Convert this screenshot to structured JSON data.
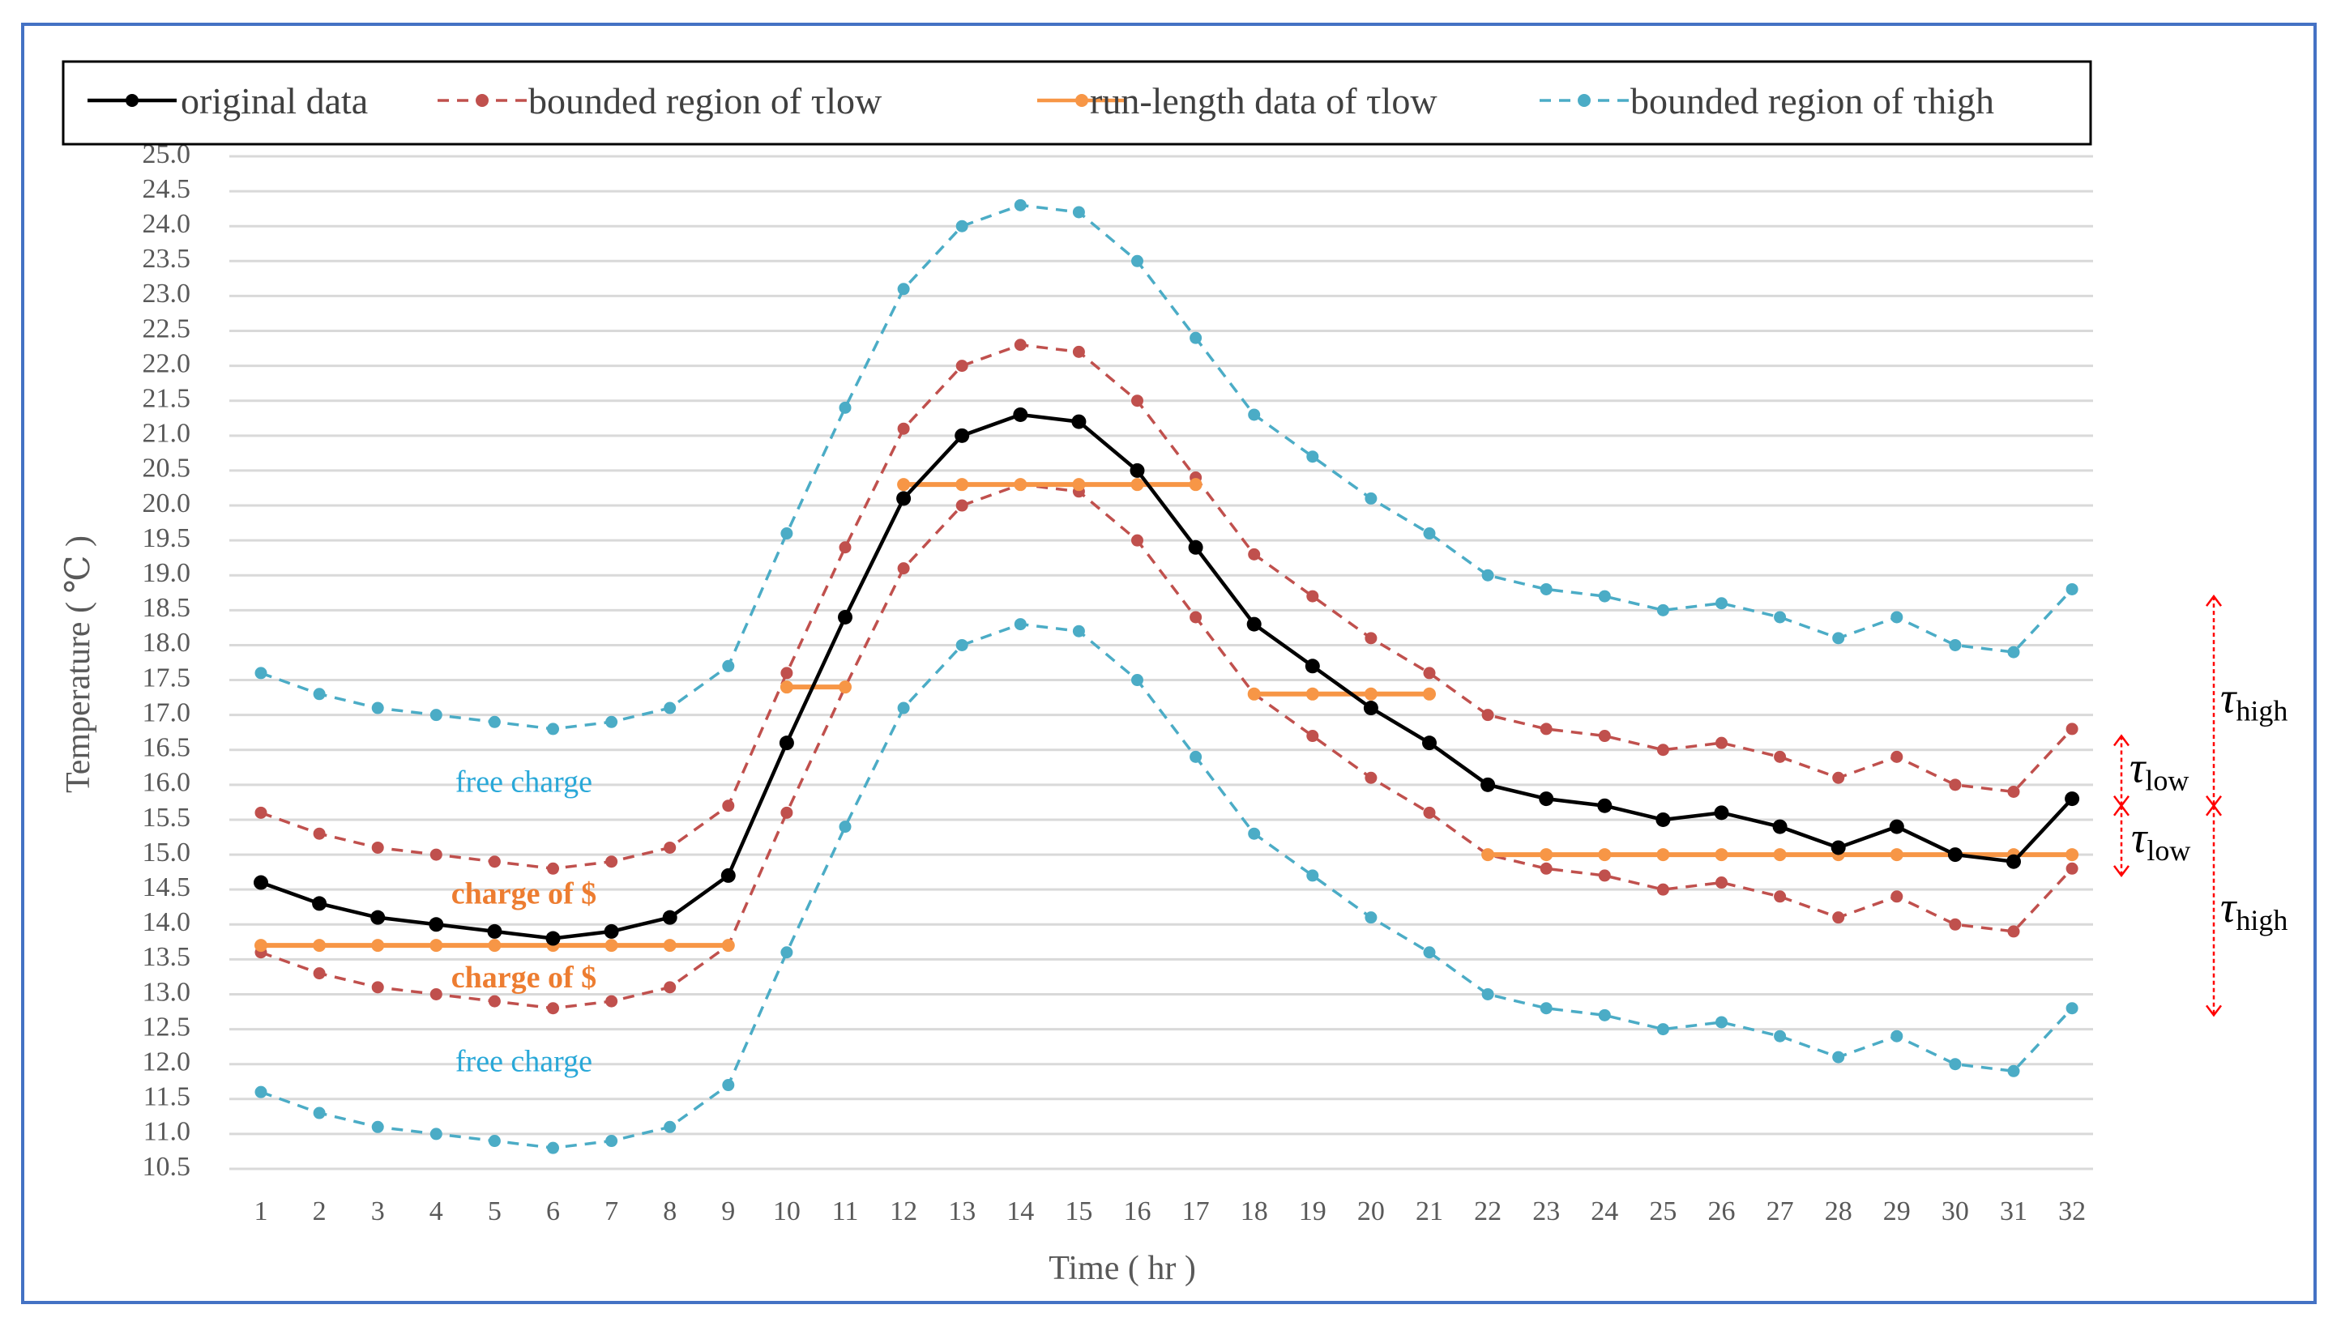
{
  "chart_data": {
    "type": "line",
    "title": "",
    "xlabel": "Time ( hr )",
    "ylabel": "Temperature ( ℃ )",
    "ylim": [
      10.5,
      25.0
    ],
    "y_step": 0.5,
    "grid": true,
    "legend_position": "top",
    "categories": [
      "1",
      "2",
      "3",
      "4",
      "5",
      "6",
      "7",
      "8",
      "9",
      "10",
      "11",
      "12",
      "13",
      "14",
      "15",
      "16",
      "17",
      "18",
      "19",
      "20",
      "21",
      "22",
      "23",
      "24",
      "25",
      "26",
      "27",
      "28",
      "29",
      "30",
      "31",
      "32"
    ],
    "series": [
      {
        "name": "original data",
        "color": "#000000",
        "dash": "solid",
        "values": [
          14.6,
          14.3,
          14.1,
          14.0,
          13.9,
          13.8,
          13.9,
          14.1,
          14.7,
          16.6,
          18.4,
          20.1,
          21.0,
          21.3,
          21.2,
          20.5,
          19.4,
          18.3,
          17.7,
          17.1,
          16.6,
          16.0,
          15.8,
          15.7,
          15.5,
          15.6,
          15.4,
          15.1,
          15.4,
          15.0,
          14.9,
          15.8
        ]
      },
      {
        "name": "bounded  region of  τlow",
        "color": "#c0504d",
        "dash": "dashed",
        "band": "upper",
        "values": [
          15.6,
          15.3,
          15.1,
          15.0,
          14.9,
          14.8,
          14.9,
          15.1,
          15.7,
          17.6,
          19.4,
          21.1,
          22.0,
          22.3,
          22.2,
          21.5,
          20.4,
          19.3,
          18.7,
          18.1,
          17.6,
          17.0,
          16.8,
          16.7,
          16.5,
          16.6,
          16.4,
          16.1,
          16.4,
          16.0,
          15.9,
          16.8
        ]
      },
      {
        "name": "bounded  region of  τlow",
        "color": "#c0504d",
        "dash": "dashed",
        "band": "lower",
        "values": [
          13.6,
          13.3,
          13.1,
          13.0,
          12.9,
          12.8,
          12.9,
          13.1,
          13.7,
          15.6,
          17.4,
          19.1,
          20.0,
          20.3,
          20.2,
          19.5,
          18.4,
          17.3,
          16.7,
          16.1,
          15.6,
          15.0,
          14.8,
          14.7,
          14.5,
          14.6,
          14.4,
          14.1,
          14.4,
          14.0,
          13.9,
          14.8
        ]
      },
      {
        "name": "bounded  region of τhigh",
        "color": "#4bacc6",
        "dash": "dashed",
        "band": "upper",
        "values": [
          17.6,
          17.3,
          17.1,
          17.0,
          16.9,
          16.8,
          16.9,
          17.1,
          17.7,
          19.6,
          21.4,
          23.1,
          24.0,
          24.3,
          24.2,
          23.5,
          22.4,
          21.3,
          20.7,
          20.1,
          19.6,
          19.0,
          18.8,
          18.7,
          18.5,
          18.6,
          18.4,
          18.1,
          18.4,
          18.0,
          17.9,
          18.8
        ]
      },
      {
        "name": "bounded  region of τhigh",
        "color": "#4bacc6",
        "dash": "dashed",
        "band": "lower",
        "values": [
          11.6,
          11.3,
          11.1,
          11.0,
          10.9,
          10.8,
          10.9,
          11.1,
          11.7,
          13.6,
          15.4,
          17.1,
          18.0,
          18.3,
          18.2,
          17.5,
          16.4,
          15.3,
          14.7,
          14.1,
          13.6,
          13.0,
          12.8,
          12.7,
          12.5,
          12.6,
          12.4,
          12.1,
          12.4,
          12.0,
          11.9,
          12.8
        ]
      },
      {
        "name": "run-length data of τlow",
        "color": "#f79646",
        "dash": "solid",
        "segments": [
          {
            "x": [
              1,
              2,
              3,
              4,
              5,
              6,
              7,
              8,
              9
            ],
            "value": 13.7
          },
          {
            "x": [
              10,
              11
            ],
            "value": 17.4
          },
          {
            "x": [
              12,
              13,
              14,
              15,
              16,
              17
            ],
            "value": 20.3
          },
          {
            "x": [
              18,
              19,
              20,
              21
            ],
            "value": 17.3
          },
          {
            "x": [
              22,
              23,
              24,
              25,
              26,
              27,
              28,
              29,
              30,
              31,
              32
            ],
            "value": 15.0
          }
        ]
      }
    ],
    "legend": [
      {
        "label": "original data",
        "color": "#000000",
        "dash": "solid"
      },
      {
        "label": "bounded  region of  τlow",
        "color": "#c0504d",
        "dash": "dashed"
      },
      {
        "label": "run-length data of τlow",
        "color": "#f79646",
        "dash": "solid"
      },
      {
        "label": "bounded  region of τhigh",
        "color": "#4bacc6",
        "dash": "dashed"
      }
    ],
    "annotations": [
      {
        "text": "free charge",
        "x": 5.5,
        "y": 16.0,
        "color": "#29a8d8"
      },
      {
        "text": "charge of $",
        "x": 5.5,
        "y": 14.4,
        "color": "#ed7d31"
      },
      {
        "text": "charge of $",
        "x": 5.5,
        "y": 13.2,
        "color": "#ed7d31"
      },
      {
        "text": "free charge",
        "x": 5.5,
        "y": 12.0,
        "color": "#29a8d8"
      }
    ],
    "side_labels": [
      {
        "symbol": "τ",
        "sub": "high",
        "from": 15.7,
        "to": 18.7
      },
      {
        "symbol": "τ",
        "sub": "low",
        "from": 15.7,
        "to": 16.7
      },
      {
        "symbol": "τ",
        "sub": "low",
        "from": 14.7,
        "to": 15.7
      },
      {
        "symbol": "τ",
        "sub": "high",
        "from": 12.7,
        "to": 15.7
      }
    ]
  }
}
